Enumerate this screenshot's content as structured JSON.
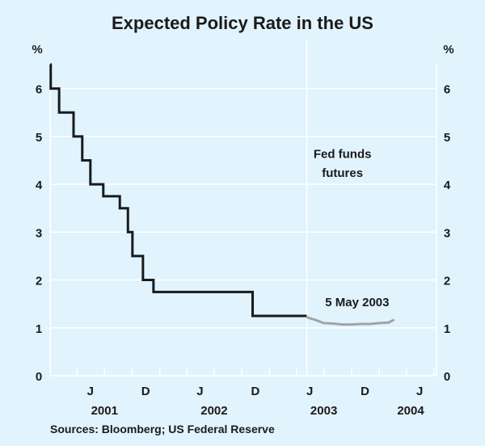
{
  "chart_data": {
    "type": "line",
    "title": "Expected Policy Rate in the US",
    "ylabel_left": "%",
    "ylabel_right": "%",
    "ylim": [
      0,
      6.5
    ],
    "yticks": [
      0,
      1,
      2,
      3,
      4,
      5,
      6
    ],
    "xlim": [
      "2001-01-01",
      "2004-07-10"
    ],
    "grid": true,
    "x_tick_labels": [
      {
        "label": "J",
        "date": "2001-05-15"
      },
      {
        "label": "D",
        "date": "2001-11-15"
      },
      {
        "label": "J",
        "date": "2002-05-15"
      },
      {
        "label": "D",
        "date": "2002-11-15"
      },
      {
        "label": "J",
        "date": "2003-05-15"
      },
      {
        "label": "D",
        "date": "2003-11-15"
      },
      {
        "label": "J",
        "date": "2004-05-15"
      }
    ],
    "year_labels": [
      {
        "label": "2001",
        "date": "2001-07-01"
      },
      {
        "label": "2002",
        "date": "2002-07-01"
      },
      {
        "label": "2003",
        "date": "2003-07-01"
      },
      {
        "label": "2004",
        "date": "2004-04-15"
      }
    ],
    "series": [
      {
        "style": "step",
        "color": "#1a1a1a",
        "points": [
          [
            "2001-01-01",
            6.5
          ],
          [
            "2001-01-03",
            6.0
          ],
          [
            "2001-01-31",
            5.5
          ],
          [
            "2001-03-20",
            5.0
          ],
          [
            "2001-04-18",
            4.5
          ],
          [
            "2001-05-15",
            4.0
          ],
          [
            "2001-06-27",
            3.75
          ],
          [
            "2001-08-21",
            3.5
          ],
          [
            "2001-09-17",
            3.0
          ],
          [
            "2001-10-02",
            2.5
          ],
          [
            "2001-11-06",
            2.0
          ],
          [
            "2001-12-11",
            1.75
          ],
          [
            "2002-11-06",
            1.25
          ],
          [
            "2003-05-05",
            1.25
          ]
        ]
      },
      {
        "name": "Fed funds futures",
        "style": "line",
        "color": "#a0a4a6",
        "points": [
          [
            "2003-05-05",
            1.22
          ],
          [
            "2003-06-01",
            1.17
          ],
          [
            "2003-07-01",
            1.1
          ],
          [
            "2003-08-01",
            1.09
          ],
          [
            "2003-09-01",
            1.07
          ],
          [
            "2003-10-01",
            1.07
          ],
          [
            "2003-11-01",
            1.08
          ],
          [
            "2003-12-01",
            1.08
          ],
          [
            "2004-01-01",
            1.1
          ],
          [
            "2004-02-01",
            1.11
          ],
          [
            "2004-02-20",
            1.17
          ]
        ]
      }
    ],
    "annotations": [
      {
        "text": "Fed funds",
        "date": "2003-09-01",
        "y": 4.55
      },
      {
        "text": "futures",
        "date": "2003-09-01",
        "y": 4.15
      },
      {
        "text": "5 May 2003",
        "date": "2003-10-20",
        "y": 1.45
      }
    ],
    "vline": "2003-05-05",
    "source": "Sources: Bloomberg; US Federal Reserve"
  }
}
